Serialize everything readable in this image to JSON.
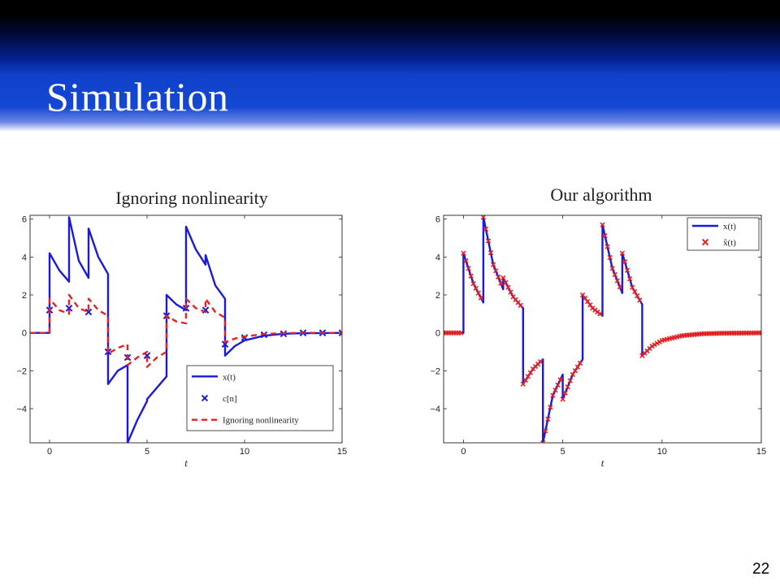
{
  "slide": {
    "title": "Simulation",
    "page_number": "22"
  },
  "chart_data": [
    {
      "type": "line",
      "title": "Ignoring nonlinearity",
      "xlabel": "t",
      "ylabel": "",
      "xlim": [
        -1,
        15
      ],
      "ylim": [
        -5.8,
        6.2
      ],
      "xticks": [
        0,
        5,
        10,
        15
      ],
      "yticks": [
        -4,
        -2,
        0,
        2,
        4,
        6
      ],
      "legend": "bottom-right",
      "series": [
        {
          "name": "x(t)",
          "kind": "line",
          "color": "#1a1ad8",
          "points": [
            [
              -1,
              0
            ],
            [
              0,
              0
            ],
            [
              0,
              4.2
            ],
            [
              0.5,
              3.3
            ],
            [
              1,
              2.7
            ],
            [
              1,
              6.1
            ],
            [
              1.5,
              3.8
            ],
            [
              2,
              2.9
            ],
            [
              2,
              5.5
            ],
            [
              2.5,
              4
            ],
            [
              3,
              3.1
            ],
            [
              3,
              -2.7
            ],
            [
              3.5,
              -2.0
            ],
            [
              4,
              -1.7
            ],
            [
              4,
              -5.8
            ],
            [
              4.5,
              -4.6
            ],
            [
              5,
              -3.6
            ],
            [
              5,
              -3.5
            ],
            [
              5.5,
              -2.9
            ],
            [
              6,
              -2.3
            ],
            [
              6,
              2.0
            ],
            [
              6.5,
              1.5
            ],
            [
              7,
              1.2
            ],
            [
              7,
              5.6
            ],
            [
              7.5,
              4.4
            ],
            [
              8,
              3.6
            ],
            [
              8,
              4.1
            ],
            [
              8.5,
              2.5
            ],
            [
              9,
              1.8
            ],
            [
              9,
              -1.2
            ],
            [
              9.5,
              -0.7
            ],
            [
              10,
              -0.4
            ],
            [
              11,
              -0.15
            ],
            [
              12,
              -0.05
            ],
            [
              13,
              -0.02
            ],
            [
              14,
              -0.01
            ],
            [
              15,
              0
            ]
          ]
        },
        {
          "name": "c[n]",
          "kind": "marker",
          "color": "#1a1ad8",
          "points": [
            [
              0,
              1.2
            ],
            [
              1,
              1.3
            ],
            [
              2,
              1.1
            ],
            [
              3,
              -1.0
            ],
            [
              4,
              -1.3
            ],
            [
              5,
              -1.2
            ],
            [
              6,
              0.9
            ],
            [
              7,
              1.3
            ],
            [
              8,
              1.2
            ],
            [
              9,
              -0.6
            ],
            [
              10,
              -0.25
            ],
            [
              11,
              -0.1
            ],
            [
              12,
              -0.05
            ],
            [
              13,
              0
            ],
            [
              14,
              0
            ],
            [
              15,
              0
            ]
          ]
        },
        {
          "name": "Ignoring nonlinearity",
          "kind": "dashed",
          "color": "#e82020",
          "points": [
            [
              -1,
              0
            ],
            [
              0,
              0
            ],
            [
              0,
              1.8
            ],
            [
              0.5,
              1.2
            ],
            [
              1,
              1
            ],
            [
              1,
              2.0
            ],
            [
              1.5,
              1.3
            ],
            [
              2,
              1.1
            ],
            [
              2,
              1.8
            ],
            [
              2.5,
              1.2
            ],
            [
              3,
              0.9
            ],
            [
              3,
              -1.1
            ],
            [
              3.5,
              -0.8
            ],
            [
              4,
              -0.6
            ],
            [
              4,
              -1.7
            ],
            [
              4.5,
              -1.3
            ],
            [
              5,
              -1.0
            ],
            [
              5,
              -1.8
            ],
            [
              5.5,
              -1.3
            ],
            [
              6,
              -1.0
            ],
            [
              6,
              0.9
            ],
            [
              6.5,
              0.6
            ],
            [
              7,
              0.5
            ],
            [
              7,
              1.8
            ],
            [
              7.5,
              1.3
            ],
            [
              8,
              1.1
            ],
            [
              8,
              1.8
            ],
            [
              8.5,
              1.1
            ],
            [
              9,
              0.8
            ],
            [
              9,
              -0.5
            ],
            [
              9.5,
              -0.3
            ],
            [
              10,
              -0.2
            ],
            [
              11,
              -0.06
            ],
            [
              12,
              -0.02
            ],
            [
              13,
              0
            ],
            [
              14,
              0
            ],
            [
              15,
              0
            ]
          ]
        }
      ]
    },
    {
      "type": "line",
      "title": "Our algorithm",
      "xlabel": "t",
      "ylabel": "",
      "xlim": [
        -1,
        15
      ],
      "ylim": [
        -5.8,
        6.2
      ],
      "xticks": [
        0,
        5,
        10,
        15
      ],
      "yticks": [
        -4,
        -2,
        0,
        2,
        4,
        6
      ],
      "legend": "top-right",
      "series": [
        {
          "name": "x(t)",
          "kind": "line",
          "color": "#1a1ad8",
          "points": [
            [
              -1,
              0
            ],
            [
              0,
              0
            ],
            [
              0,
              4.2
            ],
            [
              0.5,
              2.6
            ],
            [
              1,
              1.6
            ],
            [
              1,
              6.1
            ],
            [
              1.5,
              3.6
            ],
            [
              2,
              2.3
            ],
            [
              2,
              2.9
            ],
            [
              2.5,
              1.9
            ],
            [
              3,
              1.3
            ],
            [
              3,
              -2.7
            ],
            [
              3.5,
              -1.9
            ],
            [
              4,
              -1.4
            ],
            [
              4,
              -5.8
            ],
            [
              4.5,
              -3.3
            ],
            [
              5,
              -2.2
            ],
            [
              5,
              -3.5
            ],
            [
              5.5,
              -2.2
            ],
            [
              6,
              -1.4
            ],
            [
              6,
              2.0
            ],
            [
              6.5,
              1.3
            ],
            [
              7,
              0.9
            ],
            [
              7,
              5.7
            ],
            [
              7.5,
              3.4
            ],
            [
              8,
              2.1
            ],
            [
              8,
              4.2
            ],
            [
              8.5,
              2.4
            ],
            [
              9,
              1.5
            ],
            [
              9,
              -1.2
            ],
            [
              9.5,
              -0.7
            ],
            [
              10,
              -0.4
            ],
            [
              11,
              -0.15
            ],
            [
              12,
              -0.05
            ],
            [
              13,
              -0.02
            ],
            [
              14,
              -0.01
            ],
            [
              15,
              0
            ]
          ]
        },
        {
          "name": "x̂(t)",
          "kind": "marker-dense",
          "color": "#e82020",
          "points": [
            [
              -1,
              0
            ],
            [
              0,
              0
            ],
            [
              0,
              4.2
            ],
            [
              0.5,
              2.6
            ],
            [
              1,
              1.6
            ],
            [
              1,
              6.1
            ],
            [
              1.5,
              3.6
            ],
            [
              2,
              2.3
            ],
            [
              2,
              2.9
            ],
            [
              2.5,
              1.9
            ],
            [
              3,
              1.3
            ],
            [
              3,
              -2.7
            ],
            [
              3.5,
              -1.9
            ],
            [
              4,
              -1.4
            ],
            [
              4,
              -5.8
            ],
            [
              4.5,
              -3.3
            ],
            [
              5,
              -2.2
            ],
            [
              5,
              -3.5
            ],
            [
              5.5,
              -2.2
            ],
            [
              6,
              -1.4
            ],
            [
              6,
              2.0
            ],
            [
              6.5,
              1.3
            ],
            [
              7,
              0.9
            ],
            [
              7,
              5.7
            ],
            [
              7.5,
              3.4
            ],
            [
              8,
              2.1
            ],
            [
              8,
              4.2
            ],
            [
              8.5,
              2.4
            ],
            [
              9,
              1.5
            ],
            [
              9,
              -1.2
            ],
            [
              9.5,
              -0.7
            ],
            [
              10,
              -0.4
            ],
            [
              11,
              -0.15
            ],
            [
              12,
              -0.05
            ],
            [
              13,
              -0.02
            ],
            [
              14,
              -0.01
            ],
            [
              15,
              0
            ]
          ]
        }
      ]
    }
  ]
}
